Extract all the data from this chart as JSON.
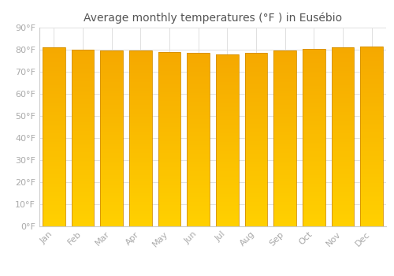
{
  "title": "Average monthly temperatures (°F ) in Eusébio",
  "months": [
    "Jan",
    "Feb",
    "Mar",
    "Apr",
    "May",
    "Jun",
    "Jul",
    "Aug",
    "Sep",
    "Oct",
    "Nov",
    "Dec"
  ],
  "values": [
    81,
    80,
    79.5,
    79.5,
    79,
    78.5,
    78,
    78.5,
    79.5,
    80.5,
    81,
    81.5
  ],
  "bar_color_bottom": "#FFD000",
  "bar_color_top": "#F5A800",
  "bar_edge_color": "#D49000",
  "ylim": [
    0,
    90
  ],
  "yticks": [
    0,
    10,
    20,
    30,
    40,
    50,
    60,
    70,
    80,
    90
  ],
  "ytick_labels": [
    "0°F",
    "10°F",
    "20°F",
    "30°F",
    "40°F",
    "50°F",
    "60°F",
    "70°F",
    "80°F",
    "90°F"
  ],
  "background_color": "#ffffff",
  "grid_color": "#e0e0e0",
  "title_fontsize": 10,
  "tick_fontsize": 8,
  "font_color": "#aaaaaa"
}
